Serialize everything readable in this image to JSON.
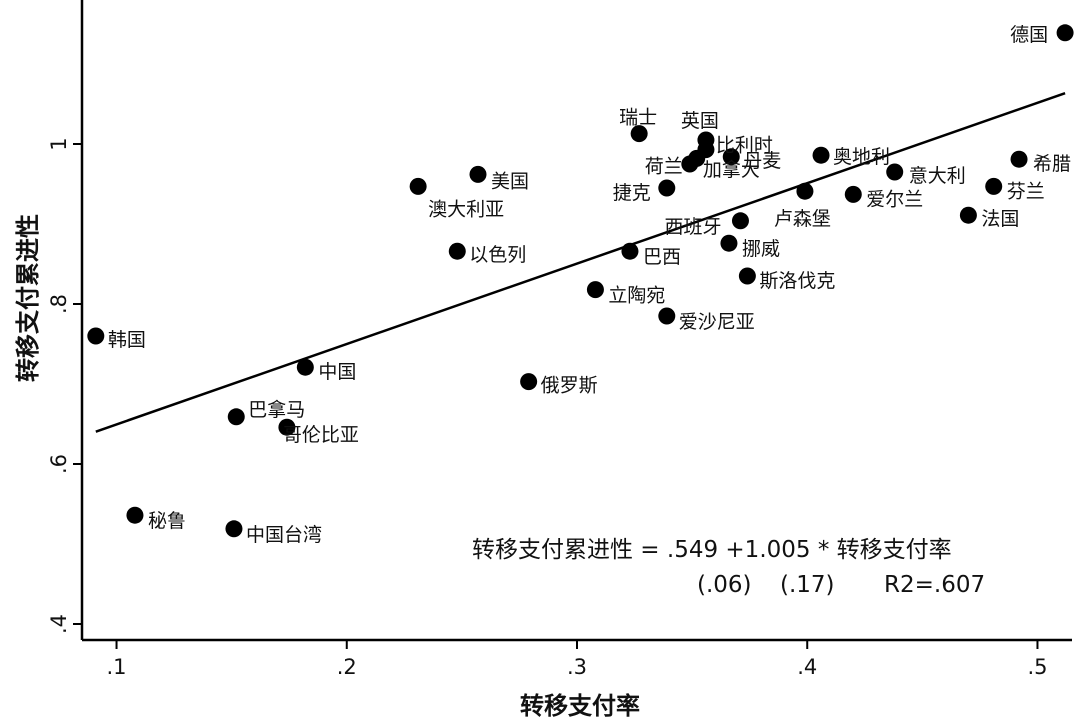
{
  "chart_data": {
    "type": "scatter",
    "title": "",
    "xlabel": "转移支付率",
    "ylabel": "转移支付累进性",
    "xlim": [
      0.085,
      0.515
    ],
    "ylim": [
      0.38,
      1.18
    ],
    "xticks": [
      {
        "v": 0.1,
        "label": ".1"
      },
      {
        "v": 0.2,
        "label": ".2"
      },
      {
        "v": 0.3,
        "label": ".3"
      },
      {
        "v": 0.4,
        "label": ".4"
      },
      {
        "v": 0.5,
        "label": ".5"
      }
    ],
    "yticks": [
      {
        "v": 0.4,
        "label": ".4"
      },
      {
        "v": 0.6,
        "label": ".6"
      },
      {
        "v": 0.8,
        "label": ".8"
      },
      {
        "v": 1.0,
        "label": "1"
      }
    ],
    "grid": false,
    "fit_line": {
      "intercept": 0.549,
      "slope": 1.005,
      "x_range": [
        0.091,
        0.512
      ]
    },
    "points": [
      {
        "label": "德国",
        "x": 0.512,
        "y": 1.139
      },
      {
        "label": "瑞士",
        "x": 0.327,
        "y": 1.013
      },
      {
        "label": "英国",
        "x": 0.356,
        "y": 1.005
      },
      {
        "label": "比利时",
        "x": 0.356,
        "y": 0.993
      },
      {
        "label": "荷兰",
        "x": 0.352,
        "y": 0.982
      },
      {
        "label": "丹麦",
        "x": 0.367,
        "y": 0.984
      },
      {
        "label": "奥地利",
        "x": 0.406,
        "y": 0.986
      },
      {
        "label": "希腊",
        "x": 0.492,
        "y": 0.981
      },
      {
        "label": "意大利",
        "x": 0.438,
        "y": 0.965
      },
      {
        "label": "芬兰",
        "x": 0.481,
        "y": 0.947
      },
      {
        "label": "法国",
        "x": 0.47,
        "y": 0.911
      },
      {
        "label": "美国",
        "x": 0.257,
        "y": 0.962
      },
      {
        "label": "澳大利亚",
        "x": 0.231,
        "y": 0.947
      },
      {
        "label": "捷克",
        "x": 0.339,
        "y": 0.945
      },
      {
        "label": "加拿大",
        "x": 0.349,
        "y": 0.975
      },
      {
        "label": "爱尔兰",
        "x": 0.42,
        "y": 0.937
      },
      {
        "label": "西班牙",
        "x": 0.371,
        "y": 0.904
      },
      {
        "label": "卢森堡",
        "x": 0.399,
        "y": 0.941
      },
      {
        "label": "以色列",
        "x": 0.248,
        "y": 0.866
      },
      {
        "label": "巴西",
        "x": 0.323,
        "y": 0.866
      },
      {
        "label": "挪威",
        "x": 0.366,
        "y": 0.876
      },
      {
        "label": "斯洛伐克",
        "x": 0.374,
        "y": 0.835
      },
      {
        "label": "立陶宛",
        "x": 0.308,
        "y": 0.818
      },
      {
        "label": "爱沙尼亚",
        "x": 0.339,
        "y": 0.785
      },
      {
        "label": "韩国",
        "x": 0.091,
        "y": 0.76
      },
      {
        "label": "中国",
        "x": 0.182,
        "y": 0.721
      },
      {
        "label": "俄罗斯",
        "x": 0.279,
        "y": 0.703
      },
      {
        "label": "巴拿马",
        "x": 0.152,
        "y": 0.659
      },
      {
        "label": "哥伦比亚",
        "x": 0.174,
        "y": 0.646
      },
      {
        "label": "秘鲁",
        "x": 0.108,
        "y": 0.536
      },
      {
        "label": "中国台湾",
        "x": 0.151,
        "y": 0.519
      }
    ],
    "annotations": {
      "equation": "转移支付累进性 = .549 +1.005 * 转移支付率",
      "se_intercept": "(.06)",
      "se_slope": "(.17)",
      "r2": "R2=.607"
    }
  }
}
